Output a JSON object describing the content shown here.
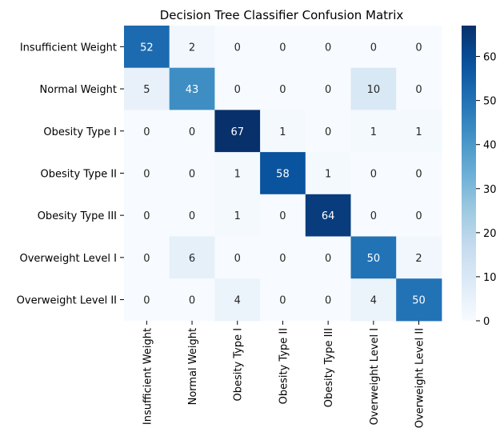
{
  "chart_data": {
    "type": "heatmap",
    "title": "Decision Tree Classifier Confusion Matrix",
    "xlabel": "",
    "ylabel": "",
    "row_labels": [
      "Insufficient Weight",
      "Normal Weight",
      "Obesity Type I",
      "Obesity Type II",
      "Obesity Type III",
      "Overweight Level I",
      "Overweight Level II"
    ],
    "col_labels": [
      "Insufficient Weight",
      "Normal Weight",
      "Obesity Type I",
      "Obesity Type II",
      "Obesity Type III",
      "Overweight Level I",
      "Overweight Level II"
    ],
    "values": [
      [
        52,
        2,
        0,
        0,
        0,
        0,
        0
      ],
      [
        5,
        43,
        0,
        0,
        0,
        10,
        0
      ],
      [
        0,
        0,
        67,
        1,
        0,
        1,
        1
      ],
      [
        0,
        0,
        1,
        58,
        1,
        0,
        0
      ],
      [
        0,
        0,
        1,
        0,
        64,
        0,
        0
      ],
      [
        0,
        6,
        0,
        0,
        0,
        50,
        2
      ],
      [
        0,
        0,
        4,
        0,
        0,
        4,
        50
      ]
    ],
    "colorbar": {
      "range": [
        0,
        67
      ],
      "ticks": [
        0,
        10,
        20,
        30,
        40,
        50,
        60
      ]
    },
    "colormap": "Blues",
    "annotations": true
  }
}
